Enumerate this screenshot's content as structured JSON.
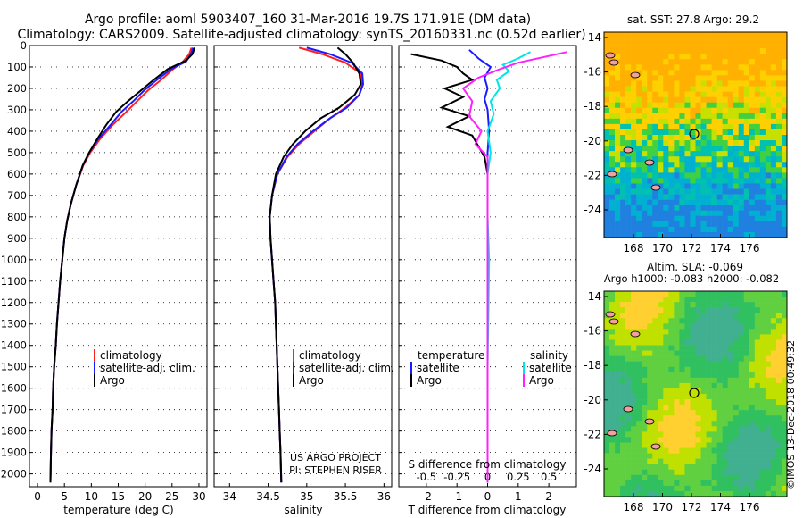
{
  "header": {
    "title_line1": "Argo profile: aoml 5903407_160 31-Mar-2016 19.7S 171.91E (DM data)",
    "title_line2": "Climatology: CARS2009. Satellite-adjusted climatology: synTS_20160331.nc (0.52d earlier)"
  },
  "colors": {
    "climatology": "#ff2020",
    "satellite": "#1a1aff",
    "argo": "#000000",
    "sat_salinity": "#00e5e5",
    "argo_salinity": "#ff20ff"
  },
  "chart_data": [
    {
      "type": "line",
      "id": "temperature",
      "xlabel": "temperature (deg C)",
      "xticks": [
        0,
        5,
        10,
        15,
        20,
        25,
        30
      ],
      "xlim": [
        -1.5,
        31.5
      ],
      "ylim": [
        0,
        2060
      ],
      "yticks": [
        0,
        100,
        200,
        300,
        400,
        500,
        600,
        700,
        800,
        900,
        1000,
        1100,
        1200,
        1300,
        1400,
        1500,
        1600,
        1700,
        1800,
        1900,
        2000
      ],
      "legend": [
        "climatology",
        "satellite-adj. clim.",
        "Argo"
      ],
      "series": [
        {
          "name": "climatology",
          "color": "#ff2020",
          "points": [
            [
              28.6,
              10
            ],
            [
              28.2,
              40
            ],
            [
              27.0,
              75
            ],
            [
              25.2,
              110
            ],
            [
              23.0,
              160
            ],
            [
              20.5,
              210
            ],
            [
              18.5,
              260
            ],
            [
              16.5,
              310
            ],
            [
              14.0,
              370
            ],
            [
              11.5,
              440
            ],
            [
              9.8,
              500
            ],
            [
              8.5,
              560
            ],
            [
              7.2,
              650
            ],
            [
              6.2,
              740
            ],
            [
              5.5,
              820
            ],
            [
              5.0,
              900
            ],
            [
              4.6,
              1000
            ],
            [
              4.2,
              1100
            ],
            [
              3.9,
              1200
            ],
            [
              3.6,
              1300
            ],
            [
              3.4,
              1400
            ],
            [
              3.1,
              1500
            ],
            [
              2.9,
              1600
            ],
            [
              2.8,
              1700
            ],
            [
              2.6,
              1800
            ],
            [
              2.5,
              1900
            ],
            [
              2.4,
              2040
            ]
          ]
        },
        {
          "name": "satellite-adj. clim.",
          "color": "#1a1aff",
          "points": [
            [
              28.9,
              10
            ],
            [
              28.5,
              40
            ],
            [
              27.6,
              75
            ],
            [
              24.8,
              110
            ],
            [
              22.2,
              160
            ],
            [
              19.8,
              210
            ],
            [
              17.8,
              260
            ],
            [
              15.6,
              310
            ],
            [
              13.6,
              370
            ],
            [
              11.2,
              440
            ],
            [
              9.6,
              500
            ],
            [
              8.4,
              560
            ],
            [
              7.2,
              650
            ],
            [
              6.2,
              740
            ],
            [
              5.5,
              820
            ],
            [
              5.0,
              900
            ],
            [
              4.6,
              1000
            ],
            [
              4.2,
              1100
            ],
            [
              3.9,
              1200
            ],
            [
              3.6,
              1300
            ],
            [
              3.4,
              1400
            ],
            [
              3.1,
              1500
            ],
            [
              2.9,
              1600
            ],
            [
              2.8,
              1700
            ],
            [
              2.6,
              1800
            ],
            [
              2.5,
              1900
            ],
            [
              2.4,
              2040
            ]
          ]
        },
        {
          "name": "Argo",
          "color": "#000000",
          "points": [
            [
              29.2,
              10
            ],
            [
              28.8,
              40
            ],
            [
              27.6,
              70
            ],
            [
              24.2,
              110
            ],
            [
              21.6,
              160
            ],
            [
              19.2,
              210
            ],
            [
              16.8,
              260
            ],
            [
              14.6,
              310
            ],
            [
              12.8,
              370
            ],
            [
              11.0,
              440
            ],
            [
              9.6,
              500
            ],
            [
              8.4,
              560
            ],
            [
              7.2,
              650
            ],
            [
              6.2,
              740
            ],
            [
              5.5,
              820
            ],
            [
              5.0,
              900
            ],
            [
              4.6,
              1000
            ],
            [
              4.2,
              1100
            ],
            [
              3.9,
              1200
            ],
            [
              3.6,
              1300
            ],
            [
              3.4,
              1400
            ],
            [
              3.1,
              1500
            ],
            [
              2.9,
              1600
            ],
            [
              2.8,
              1700
            ],
            [
              2.6,
              1800
            ],
            [
              2.5,
              1900
            ],
            [
              2.4,
              2040
            ]
          ]
        }
      ]
    },
    {
      "type": "line",
      "id": "salinity",
      "xlabel": "salinity",
      "xticks": [
        34,
        34.5,
        35,
        35.5,
        36
      ],
      "xlim": [
        33.8,
        36.1
      ],
      "ylim": [
        0,
        2060
      ],
      "legend": [
        "climatology",
        "satellite-adj. clim.",
        "Argo"
      ],
      "note_line1": "US ARGO PROJECT",
      "note_line2": "PI: STEPHEN RISER",
      "series": [
        {
          "name": "climatology",
          "color": "#ff2020",
          "points": [
            [
              34.9,
              10
            ],
            [
              35.2,
              40
            ],
            [
              35.5,
              80
            ],
            [
              35.7,
              130
            ],
            [
              35.72,
              180
            ],
            [
              35.68,
              230
            ],
            [
              35.5,
              290
            ],
            [
              35.3,
              340
            ],
            [
              35.1,
              400
            ],
            [
              34.9,
              460
            ],
            [
              34.75,
              520
            ],
            [
              34.62,
              600
            ],
            [
              34.55,
              700
            ],
            [
              34.52,
              800
            ],
            [
              34.53,
              900
            ],
            [
              34.55,
              1000
            ],
            [
              34.57,
              1100
            ],
            [
              34.59,
              1200
            ],
            [
              34.6,
              1300
            ],
            [
              34.61,
              1400
            ],
            [
              34.62,
              1500
            ],
            [
              34.63,
              1600
            ],
            [
              34.64,
              1700
            ],
            [
              34.65,
              1800
            ],
            [
              34.66,
              1900
            ],
            [
              34.67,
              2040
            ]
          ]
        },
        {
          "name": "satellite-adj. clim.",
          "color": "#1a1aff",
          "points": [
            [
              35.0,
              10
            ],
            [
              35.3,
              40
            ],
            [
              35.58,
              80
            ],
            [
              35.72,
              130
            ],
            [
              35.73,
              180
            ],
            [
              35.68,
              230
            ],
            [
              35.52,
              290
            ],
            [
              35.3,
              340
            ],
            [
              35.08,
              400
            ],
            [
              34.88,
              460
            ],
            [
              34.74,
              520
            ],
            [
              34.62,
              600
            ],
            [
              34.55,
              700
            ],
            [
              34.52,
              800
            ],
            [
              34.53,
              900
            ],
            [
              34.55,
              1000
            ],
            [
              34.57,
              1100
            ],
            [
              34.59,
              1200
            ],
            [
              34.6,
              1300
            ],
            [
              34.61,
              1400
            ],
            [
              34.62,
              1500
            ],
            [
              34.63,
              1600
            ],
            [
              34.64,
              1700
            ],
            [
              34.65,
              1800
            ],
            [
              34.66,
              1900
            ],
            [
              34.67,
              2040
            ]
          ]
        },
        {
          "name": "Argo",
          "color": "#000000",
          "points": [
            [
              35.4,
              10
            ],
            [
              35.5,
              40
            ],
            [
              35.6,
              80
            ],
            [
              35.68,
              130
            ],
            [
              35.7,
              180
            ],
            [
              35.62,
              230
            ],
            [
              35.42,
              290
            ],
            [
              35.18,
              340
            ],
            [
              34.98,
              400
            ],
            [
              34.82,
              460
            ],
            [
              34.7,
              520
            ],
            [
              34.6,
              600
            ],
            [
              34.55,
              700
            ],
            [
              34.52,
              800
            ],
            [
              34.53,
              900
            ],
            [
              34.55,
              1000
            ],
            [
              34.57,
              1100
            ],
            [
              34.59,
              1200
            ],
            [
              34.6,
              1300
            ],
            [
              34.61,
              1400
            ],
            [
              34.62,
              1500
            ],
            [
              34.63,
              1600
            ],
            [
              34.64,
              1700
            ],
            [
              34.65,
              1800
            ],
            [
              34.66,
              1900
            ],
            [
              34.67,
              2040
            ]
          ]
        }
      ]
    },
    {
      "type": "line",
      "id": "differences",
      "xlabel": "T difference from climatology",
      "xlabel_top": "S difference from climatology",
      "xticks": [
        -2,
        -1,
        0,
        1,
        2
      ],
      "xticks_salinity": [
        "-0.5",
        "-0.25",
        "0",
        "0.25",
        "0.5"
      ],
      "xticks_salinity_values": [
        -0.5,
        -0.25,
        0,
        0.25,
        0.5
      ],
      "xlim": [
        -2.9,
        2.9
      ],
      "ylim": [
        0,
        2060
      ],
      "legend_temperature_title": "temperature",
      "legend_salinity_title": "salinity",
      "legend_entries": [
        "satellite",
        "Argo"
      ],
      "series": [
        {
          "name": "temperature satellite",
          "color": "#1a1aff",
          "points": [
            [
              -0.6,
              20
            ],
            [
              -0.3,
              60
            ],
            [
              0.1,
              100
            ],
            [
              -0.1,
              150
            ],
            [
              0.0,
              200
            ],
            [
              -0.1,
              250
            ],
            [
              0.0,
              300
            ],
            [
              0.05,
              400
            ],
            [
              0.0,
              500
            ],
            [
              0.0,
              700
            ],
            [
              0.0,
              1000
            ],
            [
              0.0,
              1500
            ],
            [
              0.0,
              2040
            ]
          ]
        },
        {
          "name": "temperature Argo",
          "color": "#000000",
          "points": [
            [
              -2.5,
              40
            ],
            [
              -1.5,
              70
            ],
            [
              -1.0,
              100
            ],
            [
              -0.8,
              130
            ],
            [
              -0.5,
              160
            ],
            [
              -1.4,
              200
            ],
            [
              -0.8,
              240
            ],
            [
              -1.5,
              290
            ],
            [
              -0.6,
              330
            ],
            [
              -1.3,
              380
            ],
            [
              -0.5,
              420
            ],
            [
              -0.3,
              470
            ],
            [
              -0.1,
              520
            ],
            [
              0.0,
              600
            ],
            [
              0.0,
              800
            ],
            [
              0.0,
              1000
            ],
            [
              0.0,
              1500
            ],
            [
              0.0,
              2040
            ]
          ]
        },
        {
          "name": "salinity satellite",
          "color": "#00e5e5",
          "points": [
            [
              1.4,
              30
            ],
            [
              1.0,
              60
            ],
            [
              0.5,
              90
            ],
            [
              0.7,
              120
            ],
            [
              0.3,
              160
            ],
            [
              0.4,
              200
            ],
            [
              0.1,
              260
            ],
            [
              0.2,
              320
            ],
            [
              0.0,
              400
            ],
            [
              0.1,
              500
            ],
            [
              0.0,
              600
            ],
            [
              0.0,
              800
            ],
            [
              0.05,
              1000
            ],
            [
              0.0,
              1500
            ],
            [
              0.0,
              2040
            ]
          ]
        },
        {
          "name": "salinity Argo",
          "color": "#ff20ff",
          "points": [
            [
              2.6,
              30
            ],
            [
              1.8,
              55
            ],
            [
              1.0,
              80
            ],
            [
              0.4,
              110
            ],
            [
              -0.3,
              150
            ],
            [
              -0.8,
              200
            ],
            [
              -0.5,
              260
            ],
            [
              -0.6,
              330
            ],
            [
              -0.2,
              400
            ],
            [
              -0.4,
              460
            ],
            [
              0.0,
              520
            ],
            [
              0.0,
              700
            ],
            [
              0.0,
              1000
            ],
            [
              0.0,
              1500
            ],
            [
              0.0,
              2040
            ]
          ]
        }
      ]
    }
  ],
  "maps": {
    "sst": {
      "title": "sat. SST: 27.8 Argo: 29.2",
      "xticks": [
        "168",
        "170",
        "172",
        "174",
        "176"
      ],
      "yticks": [
        "-14",
        "-16",
        "-18",
        "-20",
        "-22",
        "-24"
      ]
    },
    "sla": {
      "title_line1": "Altim. SLA: -0.069",
      "title_line2": "Argo h1000: -0.083 h2000: -0.082",
      "xticks": [
        "168",
        "170",
        "172",
        "174",
        "176"
      ],
      "yticks": [
        "-14",
        "-16",
        "-18",
        "-20",
        "-22",
        "-24"
      ]
    }
  },
  "footer": {
    "stamp": "©IMOS 13-Dec-2018 00:49:32"
  }
}
